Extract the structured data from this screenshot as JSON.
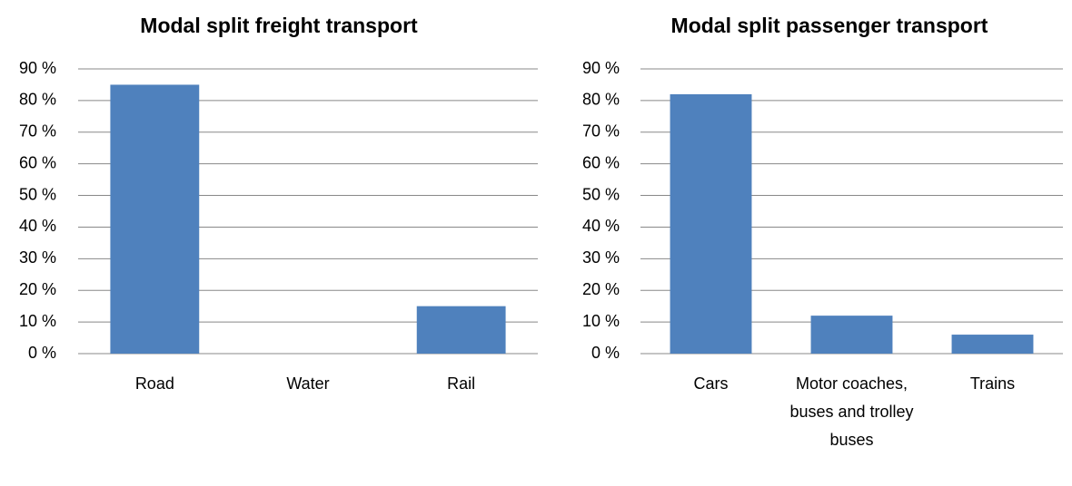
{
  "chart_data": [
    {
      "type": "bar",
      "title": "Modal split freight transport",
      "categories": [
        "Road",
        "Water",
        "Rail"
      ],
      "values": [
        85,
        0,
        15
      ],
      "color": "#4f81bd",
      "ylim": [
        0,
        90
      ],
      "yticks": [
        {
          "value": 0,
          "label": "0 %"
        },
        {
          "value": 10,
          "label": "10 %"
        },
        {
          "value": 20,
          "label": "20 %"
        },
        {
          "value": 30,
          "label": "30 %"
        },
        {
          "value": 40,
          "label": "40 %"
        },
        {
          "value": 50,
          "label": "50 %"
        },
        {
          "value": 60,
          "label": "60 %"
        },
        {
          "value": 70,
          "label": "70 %"
        },
        {
          "value": 80,
          "label": "80 %"
        },
        {
          "value": 90,
          "label": "90 %"
        }
      ],
      "grid": true
    },
    {
      "type": "bar",
      "title": "Modal split passenger transport",
      "categories": [
        "Cars",
        "Motor coaches, buses and trolley buses",
        "Trains"
      ],
      "values": [
        82,
        12,
        6
      ],
      "color": "#4f81bd",
      "ylim": [
        0,
        90
      ],
      "yticks": [
        {
          "value": 0,
          "label": "0 %"
        },
        {
          "value": 10,
          "label": "10 %"
        },
        {
          "value": 20,
          "label": "20 %"
        },
        {
          "value": 30,
          "label": "30 %"
        },
        {
          "value": 40,
          "label": "40 %"
        },
        {
          "value": 50,
          "label": "50 %"
        },
        {
          "value": 60,
          "label": "60 %"
        },
        {
          "value": 70,
          "label": "70 %"
        },
        {
          "value": 80,
          "label": "80 %"
        },
        {
          "value": 90,
          "label": "90 %"
        }
      ],
      "grid": true
    }
  ]
}
